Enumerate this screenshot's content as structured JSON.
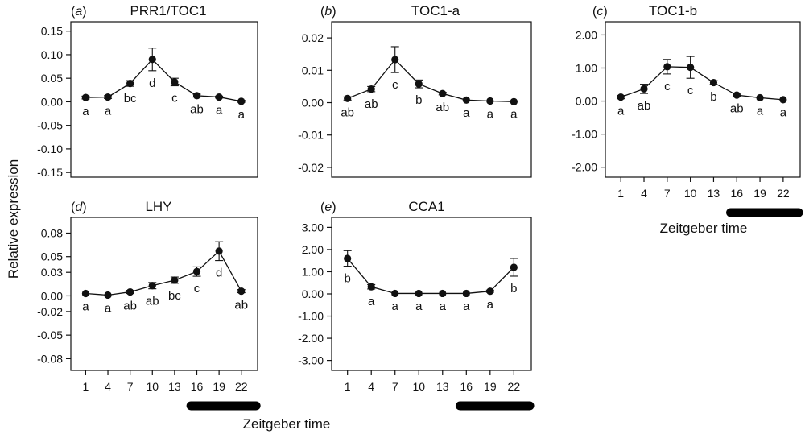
{
  "figure": {
    "ylabel": "Relative expression",
    "xlabel": "Zeitgeber time"
  },
  "chart_data": [
    {
      "type": "line",
      "panel": "a",
      "title": "PRR1/TOC1",
      "x": [
        1,
        4,
        7,
        10,
        13,
        16,
        19,
        22
      ],
      "series": [
        {
          "values": [
            0.009,
            0.01,
            0.039,
            0.09,
            0.042,
            0.013,
            0.01,
            0.001
          ],
          "errors": [
            0.003,
            0.003,
            0.006,
            0.024,
            0.008,
            0.003,
            0.002,
            0.002
          ]
        }
      ],
      "significance": [
        "a",
        "a",
        "bc",
        "d",
        "c",
        "ab",
        "a",
        "a"
      ],
      "yticks": [
        -0.15,
        -0.1,
        -0.05,
        0.0,
        0.05,
        0.1,
        0.15
      ],
      "ytick_labels": [
        "-0.15",
        "-0.10",
        "-0.05",
        "0.00",
        "0.05",
        "0.10",
        "0.15"
      ],
      "ylim": [
        -0.16,
        0.17
      ],
      "show_xticks": false,
      "dark_bar": false
    },
    {
      "type": "line",
      "panel": "b",
      "title": "TOC1-a",
      "x": [
        1,
        4,
        7,
        10,
        13,
        16,
        19,
        22
      ],
      "series": [
        {
          "values": [
            0.0013,
            0.0042,
            0.0133,
            0.0058,
            0.0028,
            0.0008,
            0.0005,
            0.0003
          ],
          "errors": [
            0.0005,
            0.0008,
            0.004,
            0.0012,
            0.0004,
            0.0002,
            0.0002,
            0.0001
          ]
        }
      ],
      "significance": [
        "ab",
        "ab",
        "c",
        "b",
        "ab",
        "a",
        "a",
        "a"
      ],
      "yticks": [
        -0.02,
        -0.01,
        0.0,
        0.01,
        0.02
      ],
      "ytick_labels": [
        "-0.02",
        "-0.01",
        "0.00",
        "0.01",
        "0.02"
      ],
      "ylim": [
        -0.023,
        0.025
      ],
      "show_xticks": false,
      "dark_bar": false
    },
    {
      "type": "line",
      "panel": "c",
      "title": "TOC1-b",
      "x": [
        1,
        4,
        7,
        10,
        13,
        16,
        19,
        22
      ],
      "series": [
        {
          "values": [
            0.12,
            0.37,
            1.04,
            1.02,
            0.56,
            0.18,
            0.1,
            0.04
          ],
          "errors": [
            0.05,
            0.14,
            0.22,
            0.33,
            0.06,
            0.03,
            0.02,
            0.02
          ]
        }
      ],
      "significance": [
        "a",
        "ab",
        "c",
        "c",
        "b",
        "ab",
        "a",
        "a"
      ],
      "yticks": [
        -2.0,
        -1.0,
        0.0,
        1.0,
        2.0
      ],
      "ytick_labels": [
        "-2.00",
        "-1.00",
        "0.00",
        "1.00",
        "2.00"
      ],
      "ylim": [
        -2.3,
        2.4
      ],
      "xtick_labels": [
        "1",
        "4",
        "7",
        "10",
        "13",
        "16",
        "19",
        "22"
      ],
      "show_xticks": true,
      "dark_bar": true,
      "dark_range": [
        15.2,
        24
      ]
    },
    {
      "type": "line",
      "panel": "d",
      "title": "LHY",
      "x": [
        1,
        4,
        7,
        10,
        13,
        16,
        19,
        22
      ],
      "series": [
        {
          "values": [
            0.003,
            0.001,
            0.005,
            0.013,
            0.02,
            0.031,
            0.057,
            0.006
          ],
          "errors": [
            0.001,
            0.001,
            0.002,
            0.004,
            0.004,
            0.006,
            0.012,
            0.002
          ]
        }
      ],
      "significance": [
        "a",
        "a",
        "ab",
        "ab",
        "bc",
        "c",
        "d",
        "ab"
      ],
      "yticks": [
        -0.08,
        -0.05,
        -0.02,
        0.0,
        0.03,
        0.05,
        0.08
      ],
      "ytick_labels": [
        "-0.08",
        "-0.05",
        "-0.02",
        "0.00",
        "0.03",
        "0.05",
        "0.08"
      ],
      "ylim": [
        -0.095,
        0.1
      ],
      "xtick_labels": [
        "1",
        "4",
        "7",
        "10",
        "13",
        "16",
        "19",
        "22"
      ],
      "show_xticks": true,
      "dark_bar": true,
      "dark_range": [
        15.2,
        24
      ]
    },
    {
      "type": "line",
      "panel": "e",
      "title": "CCA1",
      "x": [
        1,
        4,
        7,
        10,
        13,
        16,
        19,
        22
      ],
      "series": [
        {
          "values": [
            1.6,
            0.32,
            0.02,
            0.02,
            0.02,
            0.02,
            0.12,
            1.2
          ],
          "errors": [
            0.35,
            0.1,
            0.02,
            0.02,
            0.02,
            0.02,
            0.05,
            0.4
          ]
        }
      ],
      "significance": [
        "b",
        "a",
        "a",
        "a",
        "a",
        "a",
        "a",
        "b"
      ],
      "yticks": [
        -3.0,
        -2.0,
        -1.0,
        0.0,
        1.0,
        2.0,
        3.0
      ],
      "ytick_labels": [
        "-3.00",
        "-2.00",
        "-1.00",
        "0.00",
        "1.00",
        "2.00",
        "3.00"
      ],
      "ylim": [
        -3.45,
        3.45
      ],
      "xtick_labels": [
        "1",
        "4",
        "7",
        "10",
        "13",
        "16",
        "19",
        "22"
      ],
      "show_xticks": true,
      "dark_bar": true,
      "dark_range": [
        15.2,
        24
      ]
    }
  ]
}
